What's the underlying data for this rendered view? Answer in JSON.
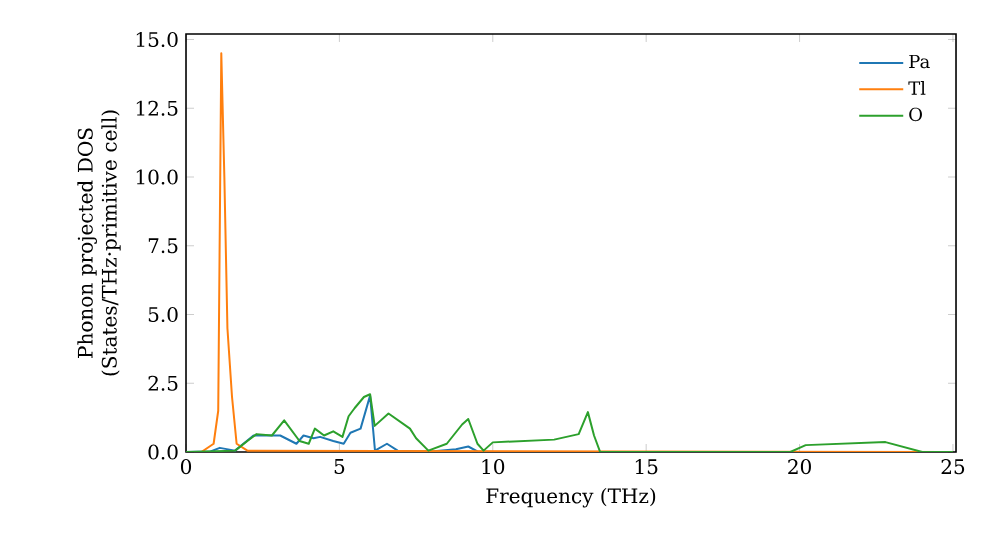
{
  "chart_data": {
    "type": "line",
    "xlabel": "Frequency (THz)",
    "ylabel": "Phonon projected DOS (States/THz·primitive cell)",
    "xlim": [
      0,
      25.1
    ],
    "ylim": [
      0,
      15.2
    ],
    "xticks": [
      0,
      5,
      10,
      15,
      20,
      25
    ],
    "yticks": [
      {
        "value": 0,
        "label": "0.0"
      },
      {
        "value": 2.5,
        "label": "2.5"
      },
      {
        "value": 5,
        "label": "5.0"
      },
      {
        "value": 7.5,
        "label": "7.5"
      },
      {
        "value": 10,
        "label": "10.0"
      },
      {
        "value": 12.5,
        "label": "12.5"
      },
      {
        "value": 15,
        "label": "15.0"
      }
    ],
    "legend": "top right",
    "grid": false,
    "marker": "none",
    "line_style": "solid",
    "series": [
      {
        "name": "Pa",
        "color": "#1f77b4",
        "x": [
          0,
          0.8,
          1.1,
          1.6,
          2.2,
          3.07,
          3.6,
          3.83,
          4.16,
          4.37,
          4.8,
          5.14,
          5.36,
          5.69,
          6.0,
          6.16,
          6.55,
          6.9,
          8.0,
          8.8,
          9.2,
          9.5,
          10.0
        ],
        "values": [
          0,
          0.02,
          0.15,
          0.05,
          0.6,
          0.6,
          0.3,
          0.6,
          0.5,
          0.55,
          0.4,
          0.3,
          0.7,
          0.85,
          2.05,
          0.05,
          0.3,
          0.05,
          0.02,
          0.1,
          0.2,
          0.02,
          0
        ]
      },
      {
        "name": "Tl",
        "color": "#ff7f0e",
        "x": [
          0,
          0.5,
          0.9,
          1.05,
          1.1,
          1.15,
          1.25,
          1.35,
          1.5,
          1.65,
          2.0,
          25
        ],
        "values": [
          0,
          0,
          0.3,
          1.5,
          8,
          14.5,
          10,
          4.5,
          2,
          0.3,
          0.05,
          0
        ]
      },
      {
        "name": "O",
        "color": "#2ca02c",
        "x": [
          0,
          1.6,
          2.0,
          2.3,
          2.8,
          3.2,
          3.7,
          4.0,
          4.2,
          4.5,
          4.8,
          5.1,
          5.3,
          5.5,
          5.8,
          6.0,
          6.15,
          6.6,
          7.3,
          7.5,
          7.9,
          8.5,
          9.0,
          9.2,
          9.5,
          9.7,
          10.0,
          12.0,
          12.8,
          13.1,
          13.3,
          13.5,
          19.7,
          20.2,
          22.8,
          24.0,
          25
        ],
        "values": [
          0,
          0.05,
          0.4,
          0.65,
          0.6,
          1.15,
          0.4,
          0.3,
          0.85,
          0.6,
          0.75,
          0.55,
          1.3,
          1.6,
          2.0,
          2.1,
          0.95,
          1.4,
          0.85,
          0.5,
          0.05,
          0.3,
          1.0,
          1.2,
          0.3,
          0.05,
          0.35,
          0.45,
          0.65,
          1.45,
          0.6,
          0,
          0,
          0.25,
          0.36,
          0,
          0
        ]
      }
    ]
  }
}
